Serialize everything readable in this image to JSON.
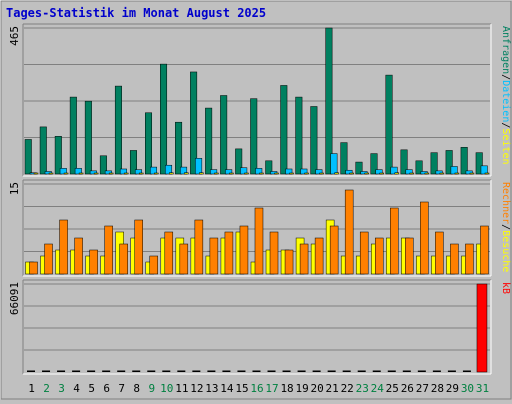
{
  "chart_data": {
    "type": "bar",
    "title": "Tages-Statistik im Monat August 2025",
    "categories": [
      "1",
      "2",
      "3",
      "4",
      "5",
      "6",
      "7",
      "8",
      "9",
      "10",
      "11",
      "12",
      "13",
      "14",
      "15",
      "16",
      "17",
      "18",
      "19",
      "20",
      "21",
      "22",
      "23",
      "24",
      "25",
      "26",
      "27",
      "28",
      "29",
      "30",
      "31"
    ],
    "weekend_days": [
      "2",
      "3",
      "9",
      "10",
      "16",
      "17",
      "23",
      "24",
      "30",
      "31"
    ],
    "colors": {
      "title": "#0000cc",
      "weekday_label": "#000000",
      "weekend_label": "#008040",
      "anfragen": "#008060",
      "dateien": "#00c0ff",
      "seiten": "#ffff00",
      "besuche": "#ff8000",
      "rechner": "#ff8000",
      "kb": "#ff0000"
    },
    "panels": [
      {
        "id": "top",
        "ymax_label": "465",
        "ymax": 465,
        "legend": [
          {
            "name": "Anfragen",
            "color_key": "anfragen"
          },
          {
            "name": "/",
            "color_key": "weekday_label"
          },
          {
            "name": "Dateien",
            "color_key": "dateien"
          },
          {
            "name": "/",
            "color_key": "weekday_label"
          },
          {
            "name": "Seiten",
            "color_key": "seiten"
          }
        ],
        "series": [
          {
            "name": "Anfragen",
            "color_key": "anfragen",
            "values": [
              110,
              150,
              120,
              245,
              232,
              58,
              280,
              75,
              195,
              350,
              165,
              325,
              210,
              250,
              80,
              240,
              42,
              282,
              245,
              215,
              465,
              100,
              38,
              65,
              315,
              77,
              42,
              68,
              75,
              85,
              68
            ]
          },
          {
            "name": "Dateien",
            "color_key": "dateien",
            "values": [
              4,
              8,
              18,
              18,
              10,
              10,
              16,
              14,
              22,
              28,
              22,
              50,
              14,
              14,
              20,
              18,
              8,
              16,
              16,
              14,
              65,
              12,
              8,
              14,
              22,
              14,
              8,
              10,
              24,
              10,
              26
            ]
          },
          {
            "name": "Seiten",
            "color_key": "seiten",
            "values": [
              2,
              3,
              3,
              3,
              3,
              2,
              3,
              2,
              3,
              4,
              4,
              4,
              3,
              3,
              3,
              3,
              2,
              3,
              3,
              3,
              4,
              2,
              2,
              3,
              4,
              3,
              2,
              2,
              3,
              2,
              3
            ]
          }
        ]
      },
      {
        "id": "middle",
        "ymax_label": "15",
        "ymax": 15,
        "legend": [
          {
            "name": "Rechner",
            "color_key": "rechner"
          },
          {
            "name": "/",
            "color_key": "weekday_label"
          },
          {
            "name": "Besuche",
            "color_key": "seiten"
          }
        ],
        "series": [
          {
            "name": "Besuche",
            "color_key": "seiten",
            "values": [
              2,
              3,
              4,
              4,
              3,
              3,
              7,
              6,
              2,
              6,
              6,
              6,
              3,
              6,
              7,
              2,
              4,
              4,
              6,
              5,
              9,
              3,
              3,
              5,
              6,
              6,
              3,
              3,
              3,
              3,
              5
            ]
          },
          {
            "name": "Rechner",
            "color_key": "rechner",
            "values": [
              2,
              5,
              9,
              6,
              4,
              8,
              5,
              9,
              3,
              7,
              5,
              9,
              6,
              7,
              8,
              11,
              7,
              4,
              5,
              6,
              8,
              14,
              7,
              6,
              11,
              6,
              12,
              7,
              5,
              5,
              8
            ]
          }
        ]
      },
      {
        "id": "bottom",
        "ymax_label": "66091",
        "ymax": 66091,
        "legend": [
          {
            "name": "kB",
            "color_key": "kb"
          }
        ],
        "series": [
          {
            "name": "kB",
            "color_key": "kb",
            "values": [
              0,
              0,
              0,
              0,
              0,
              0,
              0,
              0,
              0,
              0,
              0,
              0,
              0,
              0,
              0,
              0,
              0,
              0,
              0,
              0,
              0,
              0,
              0,
              0,
              0,
              0,
              0,
              0,
              0,
              0,
              66091
            ]
          }
        ]
      }
    ]
  }
}
